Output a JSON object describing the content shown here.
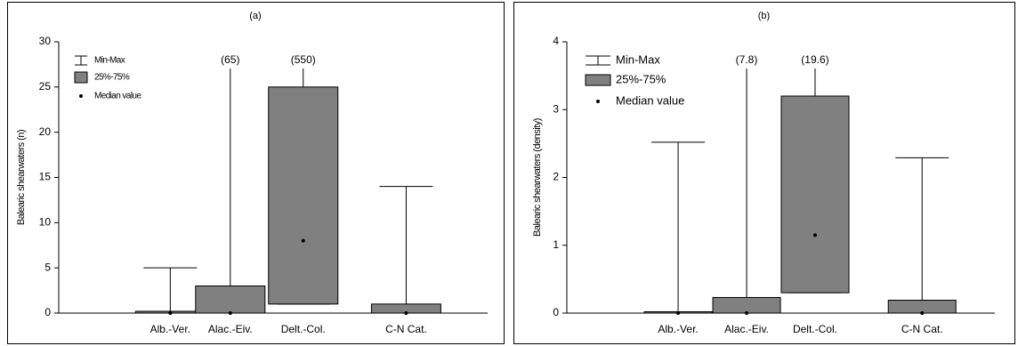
{
  "chart_data": [
    {
      "type": "box",
      "title": "(a)",
      "y_label": "Balearic shearwaters (n)",
      "categories": [
        "Alb.-Ver.",
        "Alac.-Eiv.",
        "Delt.-Col.",
        "C-N Cat."
      ],
      "min": [
        0,
        0,
        1,
        0
      ],
      "q1": [
        0,
        0,
        1,
        0
      ],
      "median": [
        0,
        0,
        8,
        0
      ],
      "q3": [
        0.2,
        3,
        25,
        1
      ],
      "max": [
        5,
        65,
        550,
        14
      ],
      "max_value_labels": [
        null,
        "(65)",
        "(550)",
        null
      ],
      "color": "#808080",
      "ylim": [
        0,
        30
      ],
      "yticks": [
        0,
        5,
        10,
        15,
        20,
        25,
        30
      ],
      "legend": [
        "Min-Max",
        "25%-75%",
        "Median value"
      ]
    },
    {
      "type": "box",
      "title": "(b)",
      "y_label": "Balearic shearwaters (density)",
      "categories": [
        "Alb.-Ver.",
        "Alac.-Eiv.",
        "Delt.-Col.",
        "C-N Cat."
      ],
      "min": [
        0,
        0,
        0.3,
        0
      ],
      "q1": [
        0,
        0,
        0.3,
        0
      ],
      "median": [
        0,
        0,
        1.15,
        0
      ],
      "q3": [
        0.02,
        0.23,
        3.2,
        0.19
      ],
      "max": [
        2.52,
        7.8,
        19.6,
        2.29
      ],
      "max_value_labels": [
        null,
        "(7.8)",
        "(19.6)",
        null
      ],
      "color": "#808080",
      "ylim": [
        0,
        4
      ],
      "yticks": [
        0,
        1,
        2,
        3,
        4
      ],
      "legend": [
        "Min-Max",
        "25%-75%",
        "Median value"
      ]
    }
  ]
}
